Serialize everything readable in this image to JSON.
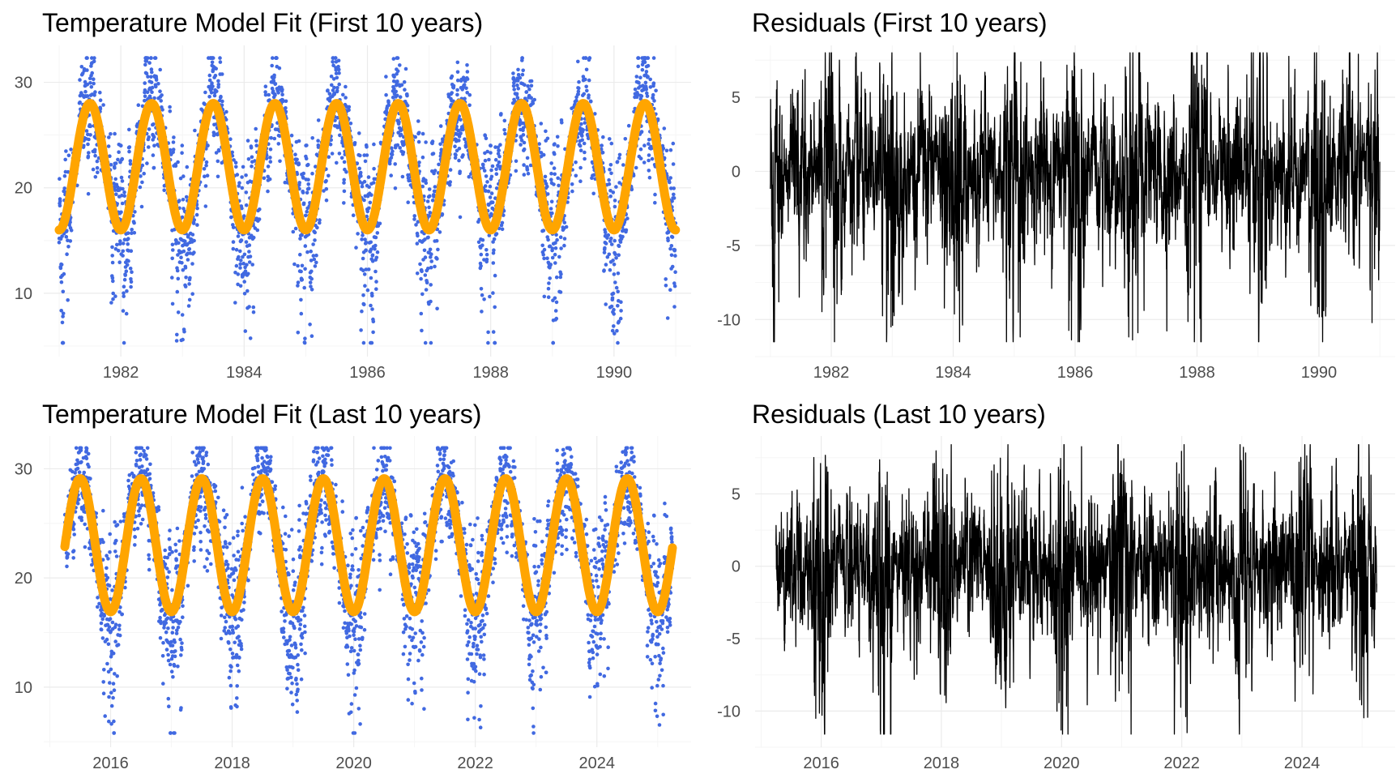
{
  "colors": {
    "points": "#4169e1",
    "fit": "#ffa500",
    "residual_line": "#000000",
    "grid_major": "#ebebeb",
    "grid_minor": "#f5f5f5",
    "tick_text": "#4d4d4d"
  },
  "chart_data": [
    {
      "id": "fit-first",
      "type": "scatter",
      "title": "Temperature Model Fit (First 10 years)",
      "xlabel": "",
      "ylabel": "",
      "x_range": [
        "1981-01-01",
        "1991-01-01"
      ],
      "xlim": [
        1980.75,
        1991.25
      ],
      "ylim": [
        4.0,
        33.5
      ],
      "xticks": [
        {
          "value": 1982,
          "label": "1982"
        },
        {
          "value": 1984,
          "label": "1984"
        },
        {
          "value": 1986,
          "label": "1986"
        },
        {
          "value": 1988,
          "label": "1988"
        },
        {
          "value": 1990,
          "label": "1990"
        }
      ],
      "yticks": [
        {
          "value": 10,
          "label": "10"
        },
        {
          "value": 20,
          "label": "20"
        },
        {
          "value": 30,
          "label": "30"
        }
      ],
      "grid": true,
      "model": {
        "mean": 22.0,
        "amplitude": 6.0,
        "peak_month": 6.5,
        "range": [
          16.0,
          28.0
        ]
      },
      "observed_range": [
        5.3,
        32.3
      ]
    },
    {
      "id": "resid-first",
      "type": "line",
      "title": "Residuals (First 10 years)",
      "xlabel": "",
      "ylabel": "",
      "x_range": [
        "1981-01-01",
        "1991-01-01"
      ],
      "xlim": [
        1980.75,
        1991.25
      ],
      "ylim": [
        -12.5,
        8.5
      ],
      "xticks": [
        {
          "value": 1982,
          "label": "1982"
        },
        {
          "value": 1984,
          "label": "1984"
        },
        {
          "value": 1986,
          "label": "1986"
        },
        {
          "value": 1988,
          "label": "1988"
        },
        {
          "value": 1990,
          "label": "1990"
        }
      ],
      "yticks": [
        {
          "value": -10,
          "label": "-10"
        },
        {
          "value": -5,
          "label": "-5"
        },
        {
          "value": 0,
          "label": "0"
        },
        {
          "value": 5,
          "label": "5"
        }
      ],
      "grid": true,
      "residual_range": [
        -11.5,
        8.0
      ]
    },
    {
      "id": "fit-last",
      "type": "scatter",
      "title": "Temperature Model Fit (Last 10 years)",
      "xlabel": "",
      "ylabel": "",
      "x_range": [
        "2015-04-01",
        "2025-04-01"
      ],
      "xlim": [
        2014.9,
        2025.55
      ],
      "ylim": [
        4.5,
        33.0
      ],
      "xticks": [
        {
          "value": 2016,
          "label": "2016"
        },
        {
          "value": 2018,
          "label": "2018"
        },
        {
          "value": 2020,
          "label": "2020"
        },
        {
          "value": 2022,
          "label": "2022"
        },
        {
          "value": 2024,
          "label": "2024"
        }
      ],
      "yticks": [
        {
          "value": 10,
          "label": "10"
        },
        {
          "value": 20,
          "label": "20"
        },
        {
          "value": 30,
          "label": "30"
        }
      ],
      "grid": true,
      "model": {
        "mean": 23.0,
        "amplitude": 6.1,
        "peak_month": 6.5,
        "range": [
          16.9,
          29.1
        ]
      },
      "observed_range": [
        5.8,
        31.9
      ]
    },
    {
      "id": "resid-last",
      "type": "line",
      "title": "Residuals (Last 10 years)",
      "xlabel": "",
      "ylabel": "",
      "x_range": [
        "2015-04-01",
        "2025-04-01"
      ],
      "xlim": [
        2014.9,
        2025.55
      ],
      "ylim": [
        -12.5,
        9.0
      ],
      "xticks": [
        {
          "value": 2016,
          "label": "2016"
        },
        {
          "value": 2018,
          "label": "2018"
        },
        {
          "value": 2020,
          "label": "2020"
        },
        {
          "value": 2022,
          "label": "2022"
        },
        {
          "value": 2024,
          "label": "2024"
        }
      ],
      "yticks": [
        {
          "value": -10,
          "label": "-10"
        },
        {
          "value": -5,
          "label": "-5"
        },
        {
          "value": 0,
          "label": "0"
        },
        {
          "value": 5,
          "label": "5"
        }
      ],
      "grid": true,
      "residual_range": [
        -11.6,
        8.4
      ]
    }
  ]
}
